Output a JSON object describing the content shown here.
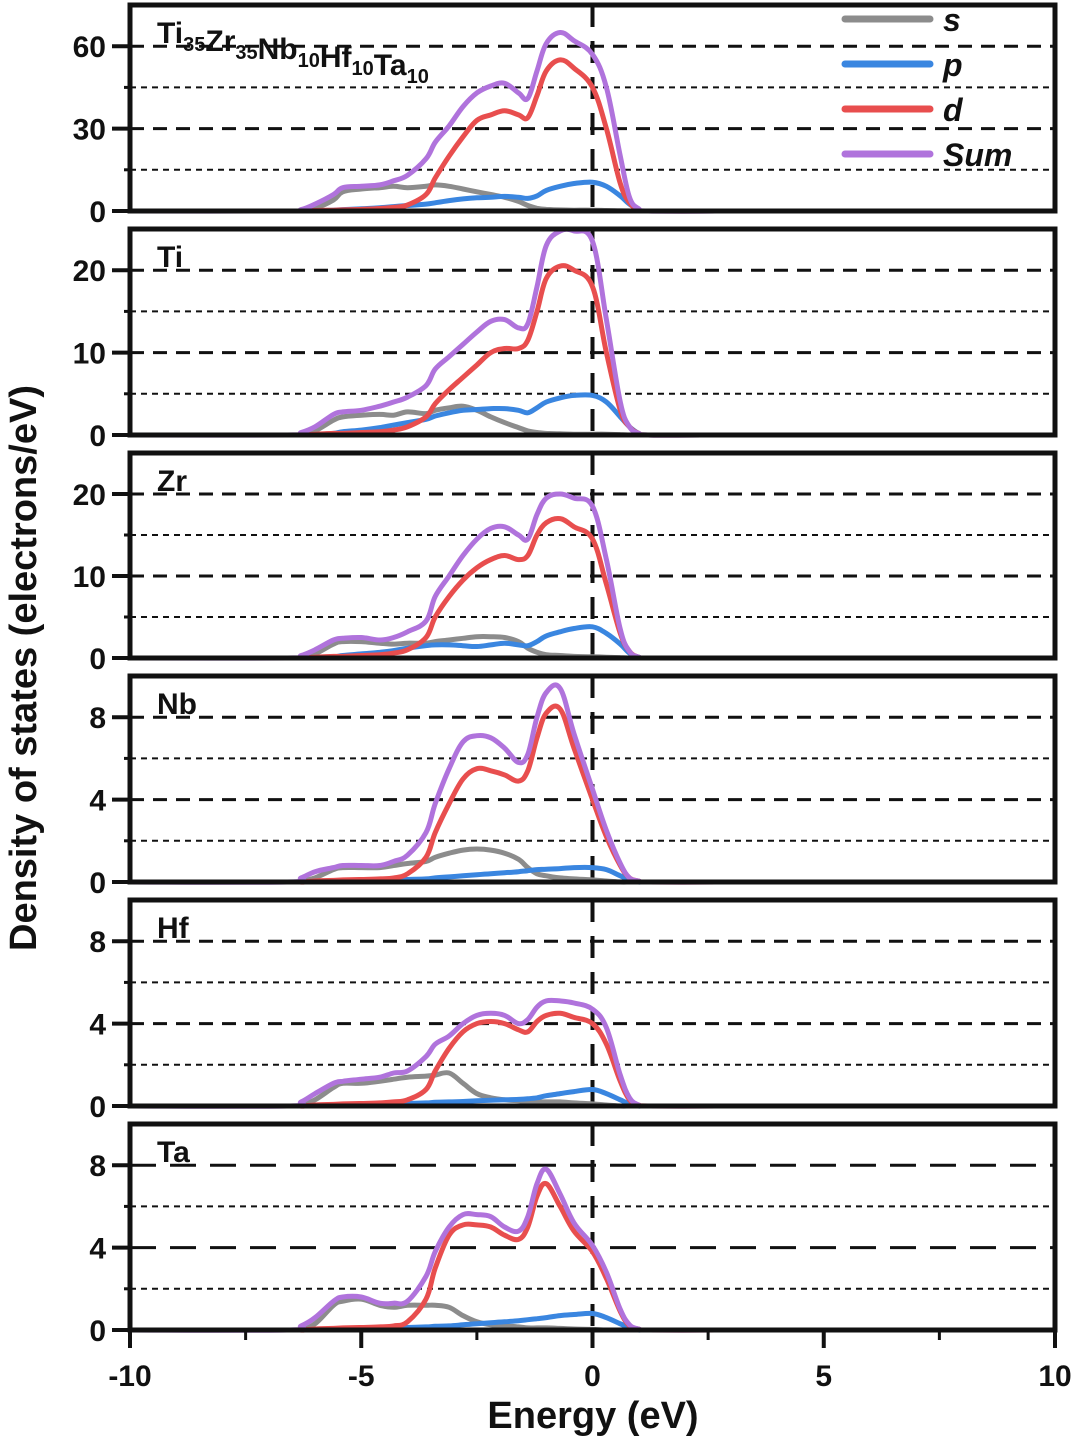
{
  "chart_data": {
    "type": "line",
    "xlabel": "Energy (eV)",
    "ylabel": "Density of states (electrons/eV)",
    "xlim": [
      -10,
      10
    ],
    "xticks": [
      -10,
      -5,
      0,
      5,
      10
    ],
    "xtick_labels": [
      "-10",
      "-5",
      "0",
      "5",
      "10"
    ],
    "fermi_level": 0,
    "grid": "horizontal dashed major and dotted minor lines",
    "legend": {
      "placement": "top-right of first panel",
      "entries": [
        {
          "key": "s",
          "label": "s",
          "color": "#8c8c8c"
        },
        {
          "key": "p",
          "label": "p",
          "color": "#3a86e0"
        },
        {
          "key": "d",
          "label": "d",
          "color": "#e84e4e"
        },
        {
          "key": "sum",
          "label": "Sum",
          "color": "#b073dc"
        }
      ]
    },
    "x": [
      -10,
      -6.6,
      -6.3,
      -6.0,
      -5.6,
      -5.4,
      -5.0,
      -4.6,
      -4.3,
      -4.0,
      -3.6,
      -3.4,
      -3.1,
      -2.8,
      -2.5,
      -2.2,
      -1.9,
      -1.6,
      -1.4,
      -1.2,
      -1.0,
      -0.7,
      -0.4,
      0.0,
      0.3,
      0.6,
      0.8,
      1.0,
      1.2,
      2.7
    ],
    "panels": [
      {
        "label_parts": [
          {
            "text": "Ti",
            "sub": "35"
          },
          {
            "text": "Zr",
            "sub": "35"
          },
          {
            "text": "Nb",
            "sub": "10"
          },
          {
            "text": "Hf",
            "sub": "10"
          },
          {
            "text": "Ta",
            "sub": "10"
          }
        ],
        "ylim": [
          0,
          75
        ],
        "yticks": [
          0,
          30,
          60
        ],
        "ytick_labels": [
          "0",
          "30",
          "60"
        ],
        "minor_yticks": [
          15,
          45
        ],
        "series": {
          "s": [
            0,
            0,
            0.2,
            1,
            4,
            7,
            8,
            8.5,
            9,
            8.5,
            9,
            9.5,
            9,
            8,
            7,
            6,
            5,
            3.5,
            2,
            1,
            0.6,
            0.4,
            0.3,
            0.3,
            0.2,
            0.1,
            0.05,
            0,
            0,
            0
          ],
          "p": [
            0,
            0,
            0,
            0.1,
            0.3,
            0.5,
            0.8,
            1.2,
            1.6,
            2,
            2.5,
            3,
            3.8,
            4.4,
            4.8,
            5,
            5.3,
            5,
            4.6,
            5.5,
            7.5,
            9,
            10,
            10.5,
            9,
            5.5,
            2.5,
            0.5,
            0,
            0
          ],
          "d": [
            0,
            0,
            0,
            0.2,
            0.3,
            0.4,
            0.6,
            0.9,
            1.3,
            2.2,
            6,
            12,
            20,
            27,
            33,
            35,
            36.5,
            35,
            34,
            42,
            51,
            55,
            52,
            45,
            30,
            10,
            3,
            0.5,
            0,
            0
          ],
          "sum": [
            0,
            0,
            0.5,
            2.5,
            6,
            8.5,
            9,
            9.5,
            11,
            13,
            19,
            25,
            31,
            38,
            43,
            45.5,
            46.5,
            43,
            41,
            51,
            61,
            65,
            62,
            57,
            45,
            20,
            5,
            0.8,
            0,
            0
          ]
        }
      },
      {
        "label_parts": [
          {
            "text": "Ti",
            "sub": ""
          }
        ],
        "ylim": [
          0,
          25
        ],
        "yticks": [
          0,
          10,
          20
        ],
        "ytick_labels": [
          "0",
          "10",
          "20"
        ],
        "minor_yticks": [
          5,
          15
        ],
        "series": {
          "s": [
            0,
            0,
            0.1,
            0.5,
            1.8,
            2.2,
            2.4,
            2.5,
            2.4,
            2.8,
            2.6,
            3,
            3.3,
            3.5,
            3,
            2.2,
            1.5,
            0.9,
            0.5,
            0.3,
            0.2,
            0.15,
            0.1,
            0.1,
            0.1,
            0.05,
            0,
            0,
            0,
            0
          ],
          "p": [
            0,
            0,
            0,
            0.05,
            0.2,
            0.4,
            0.6,
            0.9,
            1.2,
            1.5,
            1.9,
            2.3,
            2.7,
            3,
            3.1,
            3.2,
            3.2,
            3,
            2.7,
            3.3,
            4,
            4.5,
            4.8,
            4.8,
            4,
            2.2,
            1,
            0.2,
            0,
            0
          ],
          "d": [
            0,
            0,
            0,
            0.1,
            0.2,
            0.2,
            0.3,
            0.4,
            0.6,
            1,
            2.2,
            3.8,
            5.5,
            7,
            8.5,
            10,
            10.5,
            10.5,
            11.5,
            15,
            19,
            20.5,
            20,
            18,
            10,
            3,
            1,
            0.2,
            0,
            0
          ],
          "sum": [
            0,
            0,
            0.3,
            1,
            2.5,
            2.8,
            3,
            3.5,
            4,
            4.6,
            6,
            8,
            9.5,
            11,
            12.5,
            13.8,
            14,
            13,
            13.5,
            18,
            23,
            25,
            25,
            23.5,
            14,
            4,
            1,
            0.2,
            0,
            0
          ]
        }
      },
      {
        "label_parts": [
          {
            "text": "Zr",
            "sub": ""
          }
        ],
        "ylim": [
          0,
          25
        ],
        "yticks": [
          0,
          10,
          20
        ],
        "ytick_labels": [
          "0",
          "10",
          "20"
        ],
        "minor_yticks": [
          5,
          15
        ],
        "series": {
          "s": [
            0,
            0,
            0.1,
            0.5,
            1.7,
            2,
            2,
            1.8,
            1.7,
            1.8,
            1.8,
            2,
            2.2,
            2.4,
            2.6,
            2.6,
            2.5,
            2,
            1.2,
            0.7,
            0.4,
            0.3,
            0.2,
            0.15,
            0.1,
            0.05,
            0,
            0,
            0,
            0
          ],
          "p": [
            0,
            0,
            0,
            0.05,
            0.15,
            0.3,
            0.5,
            0.7,
            0.9,
            1.2,
            1.5,
            1.6,
            1.6,
            1.5,
            1.4,
            1.6,
            1.8,
            1.6,
            1.5,
            2,
            2.7,
            3.2,
            3.6,
            3.8,
            3,
            1.7,
            0.6,
            0.1,
            0,
            0
          ],
          "d": [
            0,
            0,
            0,
            0.1,
            0.2,
            0.2,
            0.3,
            0.4,
            0.6,
            1,
            2.5,
            5,
            7.5,
            9.5,
            11,
            12,
            12.5,
            12,
            12.5,
            15,
            16.5,
            17,
            16,
            14.5,
            9,
            3,
            0.8,
            0.1,
            0,
            0
          ],
          "sum": [
            0,
            0,
            0.3,
            1,
            2.2,
            2.4,
            2.5,
            2.2,
            2.5,
            3.2,
            4.5,
            7.5,
            10,
            12.5,
            14.5,
            15.8,
            16,
            15,
            14.5,
            17.5,
            19.5,
            20,
            19.5,
            18.5,
            12,
            3.5,
            0.8,
            0.1,
            0,
            0
          ]
        }
      },
      {
        "label_parts": [
          {
            "text": "Nb",
            "sub": ""
          }
        ],
        "ylim": [
          0,
          10
        ],
        "yticks": [
          0,
          4,
          8
        ],
        "ytick_labels": [
          "0",
          "4",
          "8"
        ],
        "minor_yticks": [
          2,
          6
        ],
        "series": {
          "s": [
            0,
            0,
            0.05,
            0.2,
            0.6,
            0.7,
            0.7,
            0.7,
            0.8,
            0.9,
            1,
            1.2,
            1.4,
            1.55,
            1.6,
            1.55,
            1.4,
            1.1,
            0.7,
            0.4,
            0.3,
            0.2,
            0.15,
            0.1,
            0.05,
            0,
            0,
            0,
            0,
            0
          ],
          "p": [
            0,
            0,
            0,
            0,
            0.02,
            0.03,
            0.05,
            0.07,
            0.1,
            0.12,
            0.15,
            0.2,
            0.25,
            0.3,
            0.35,
            0.4,
            0.45,
            0.5,
            0.55,
            0.6,
            0.62,
            0.65,
            0.7,
            0.7,
            0.6,
            0.3,
            0.1,
            0,
            0,
            0
          ],
          "d": [
            0,
            0,
            0,
            0.05,
            0.08,
            0.1,
            0.12,
            0.15,
            0.2,
            0.4,
            1.2,
            2.4,
            3.8,
            5,
            5.5,
            5.4,
            5.2,
            4.9,
            5.4,
            7,
            8.2,
            8.4,
            6.5,
            4,
            2.2,
            0.8,
            0.2,
            0.05,
            0,
            0
          ],
          "sum": [
            0,
            0,
            0.2,
            0.5,
            0.7,
            0.8,
            0.8,
            0.8,
            1,
            1.3,
            2.4,
            3.8,
            5.5,
            6.8,
            7.1,
            7,
            6.5,
            5.8,
            6.2,
            8,
            9.2,
            9.4,
            7.2,
            4.5,
            2.5,
            0.9,
            0.2,
            0.05,
            0,
            0
          ]
        }
      },
      {
        "label_parts": [
          {
            "text": "Hf",
            "sub": ""
          }
        ],
        "ylim": [
          0,
          10
        ],
        "yticks": [
          0,
          4,
          8
        ],
        "ytick_labels": [
          "0",
          "4",
          "8"
        ],
        "minor_yticks": [
          2,
          6
        ],
        "series": {
          "s": [
            0,
            0,
            0.05,
            0.3,
            0.9,
            1.1,
            1.1,
            1.2,
            1.3,
            1.4,
            1.45,
            1.5,
            1.6,
            1.1,
            0.6,
            0.4,
            0.3,
            0.25,
            0.2,
            0.2,
            0.2,
            0.2,
            0.15,
            0.1,
            0.05,
            0,
            0,
            0,
            0,
            0
          ],
          "p": [
            0,
            0,
            0,
            0,
            0.02,
            0.03,
            0.05,
            0.07,
            0.1,
            0.12,
            0.15,
            0.18,
            0.2,
            0.22,
            0.25,
            0.28,
            0.3,
            0.32,
            0.35,
            0.4,
            0.5,
            0.6,
            0.7,
            0.8,
            0.6,
            0.3,
            0.1,
            0,
            0,
            0
          ],
          "d": [
            0,
            0,
            0,
            0.05,
            0.08,
            0.1,
            0.12,
            0.15,
            0.2,
            0.3,
            0.8,
            1.7,
            2.8,
            3.6,
            4,
            4.1,
            4,
            3.7,
            3.6,
            4.1,
            4.4,
            4.5,
            4.3,
            4,
            3,
            1.2,
            0.3,
            0.05,
            0,
            0
          ],
          "sum": [
            0,
            0,
            0.2,
            0.6,
            1.1,
            1.2,
            1.3,
            1.4,
            1.6,
            1.7,
            2.4,
            3,
            3.4,
            4,
            4.4,
            4.5,
            4.4,
            4,
            4.2,
            4.8,
            5.1,
            5.1,
            5,
            4.7,
            3.8,
            1.5,
            0.4,
            0.05,
            0,
            0
          ]
        }
      },
      {
        "label_parts": [
          {
            "text": "Ta",
            "sub": ""
          }
        ],
        "ylim": [
          0,
          10
        ],
        "yticks": [
          0,
          4,
          8
        ],
        "ytick_labels": [
          "0",
          "4",
          "8"
        ],
        "minor_yticks": [
          2,
          6
        ],
        "series": {
          "s": [
            0,
            0,
            0.05,
            0.3,
            1.2,
            1.4,
            1.5,
            1.2,
            1.1,
            1.2,
            1.2,
            1.2,
            1.1,
            0.7,
            0.4,
            0.25,
            0.2,
            0.15,
            0.1,
            0.1,
            0.1,
            0.08,
            0.05,
            0.03,
            0,
            0,
            0,
            0,
            0,
            0
          ],
          "p": [
            0,
            0,
            0,
            0,
            0.02,
            0.03,
            0.05,
            0.07,
            0.1,
            0.12,
            0.15,
            0.18,
            0.2,
            0.25,
            0.3,
            0.35,
            0.4,
            0.45,
            0.5,
            0.55,
            0.6,
            0.7,
            0.75,
            0.8,
            0.6,
            0.3,
            0.1,
            0,
            0,
            0
          ],
          "d": [
            0,
            0,
            0,
            0.05,
            0.08,
            0.1,
            0.12,
            0.15,
            0.2,
            0.4,
            1.5,
            3,
            4.6,
            5.1,
            5.1,
            5,
            4.6,
            4.4,
            5,
            6.5,
            7.1,
            6,
            4.8,
            3.8,
            2.5,
            0.9,
            0.2,
            0.05,
            0,
            0
          ],
          "sum": [
            0,
            0,
            0.2,
            0.6,
            1.4,
            1.6,
            1.6,
            1.3,
            1.3,
            1.4,
            2.6,
            3.8,
            5,
            5.6,
            5.6,
            5.5,
            5,
            4.8,
            5.5,
            7.1,
            7.8,
            6.6,
            5.2,
            4.1,
            2.8,
            1,
            0.25,
            0.05,
            0,
            0
          ]
        }
      }
    ]
  }
}
